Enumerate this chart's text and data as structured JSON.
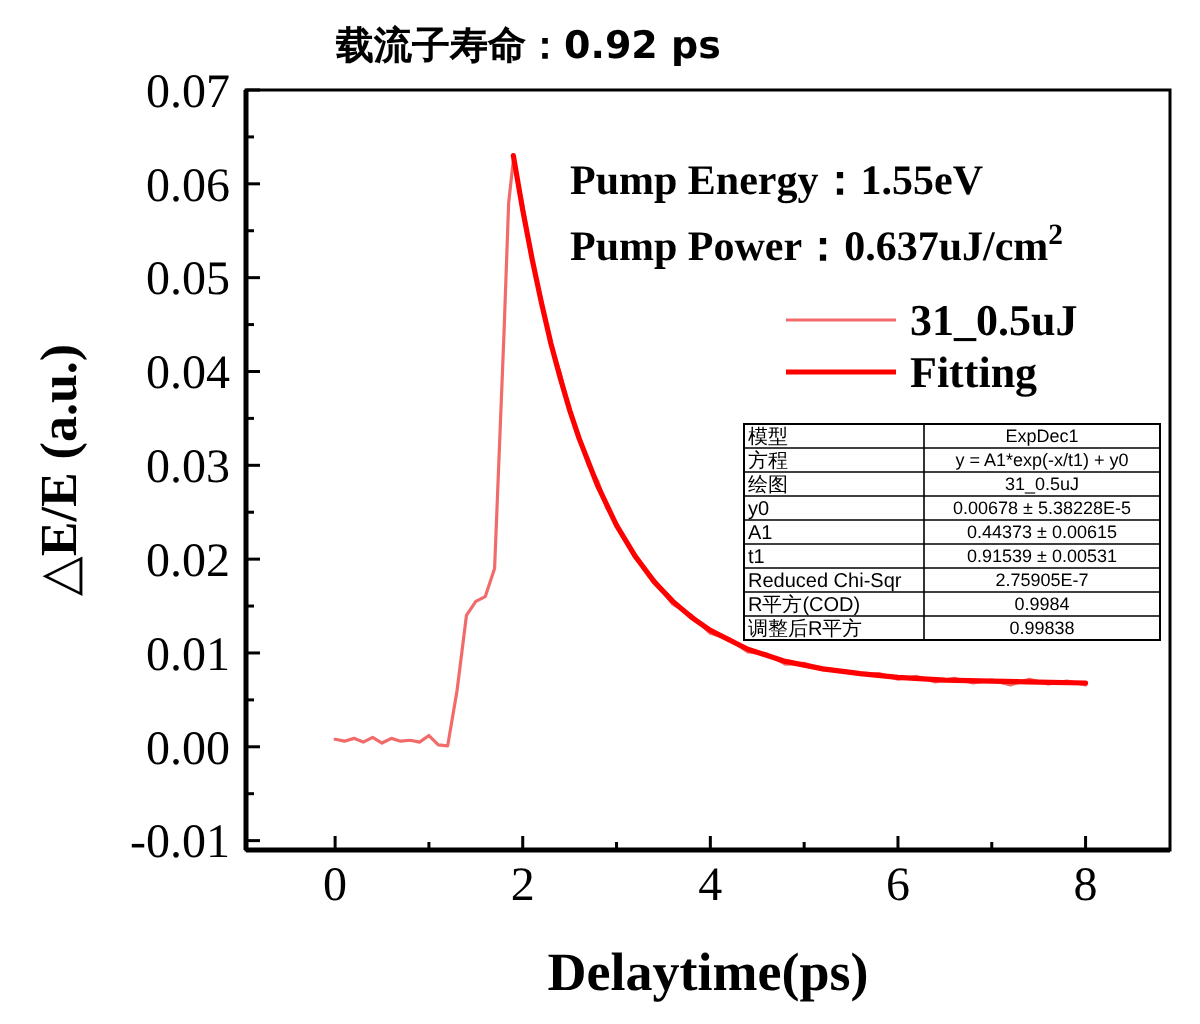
{
  "chart_data": {
    "type": "line",
    "title": "载流子寿命：0.92 ps",
    "xlabel": "Delaytime(ps)",
    "ylabel": "△E/E (a.u.)",
    "xlim": [
      -0.95,
      8.9
    ],
    "ylim": [
      -0.011,
      0.07
    ],
    "xticks": [
      0,
      {
        "value": 1,
        "label": null
      },
      2,
      {
        "value": 3,
        "label": null
      },
      4,
      {
        "value": 5,
        "label": null
      },
      6,
      {
        "value": 7,
        "label": null
      },
      8
    ],
    "yticks": [
      {
        "value": -0.01,
        "label": "-0.01"
      },
      {
        "value": -0.005,
        "label": null
      },
      {
        "value": 0,
        "label": "0.00"
      },
      {
        "value": 0.005,
        "label": null
      },
      {
        "value": 0.01,
        "label": "0.01"
      },
      {
        "value": 0.015,
        "label": null
      },
      {
        "value": 0.02,
        "label": "0.02"
      },
      {
        "value": 0.025,
        "label": null
      },
      {
        "value": 0.03,
        "label": "0.03"
      },
      {
        "value": 0.035,
        "label": null
      },
      {
        "value": 0.04,
        "label": "0.04"
      },
      {
        "value": 0.045,
        "label": null
      },
      {
        "value": 0.05,
        "label": "0.05"
      },
      {
        "value": 0.055,
        "label": null
      },
      {
        "value": 0.06,
        "label": "0.06"
      },
      {
        "value": 0.065,
        "label": null
      },
      {
        "value": 0.07,
        "label": "0.07"
      }
    ],
    "grid": false,
    "legend": "top right",
    "marker": "none",
    "line_style": "solid",
    "series": [
      {
        "name": "31_0.5uJ",
        "color": "#f26b6b",
        "x": [
          0,
          0.1,
          0.2,
          0.3,
          0.4,
          0.5,
          0.6,
          0.7,
          0.8,
          0.9,
          1.0,
          1.1,
          1.2,
          1.3,
          1.4,
          1.5,
          1.6,
          1.7,
          1.8,
          1.85,
          1.9,
          2.0,
          2.1,
          2.2,
          2.3,
          2.4,
          2.5,
          2.6,
          2.7,
          2.8,
          2.9,
          3.0,
          3.2,
          3.4,
          3.6,
          3.8,
          4.0,
          4.2,
          4.4,
          4.6,
          4.8,
          5.0,
          5.2,
          5.4,
          5.6,
          5.8,
          6.0,
          6.2,
          6.4,
          6.6,
          6.8,
          7.0,
          7.2,
          7.4,
          7.6,
          7.8,
          8.0
        ],
        "values": [
          0.0008,
          0.0006,
          0.0009,
          0.0005,
          0.001,
          0.0004,
          0.0009,
          0.0006,
          0.0007,
          0.0005,
          0.0012,
          0.0002,
          0.0001,
          0.006,
          0.014,
          0.0155,
          0.016,
          0.019,
          0.044,
          0.058,
          0.0625,
          0.0578,
          0.0518,
          0.0476,
          0.0428,
          0.0398,
          0.0357,
          0.0331,
          0.03,
          0.0283,
          0.0254,
          0.0238,
          0.0201,
          0.0178,
          0.0152,
          0.014,
          0.0121,
          0.0115,
          0.0101,
          0.0099,
          0.0088,
          0.0089,
          0.0082,
          0.0081,
          0.0077,
          0.0078,
          0.0072,
          0.0075,
          0.0069,
          0.0073,
          0.0068,
          0.0071,
          0.0066,
          0.0072,
          0.0067,
          0.007,
          0.0066
        ]
      },
      {
        "name": "Fitting",
        "color": "#ff0000",
        "x": [
          1.9,
          2.0,
          2.1,
          2.2,
          2.3,
          2.4,
          2.5,
          2.6,
          2.8,
          3.0,
          3.2,
          3.4,
          3.6,
          3.8,
          4.0,
          4.4,
          4.8,
          5.2,
          5.6,
          6.0,
          6.5,
          7.0,
          7.5,
          8.0
        ],
        "values": [
          0.063,
          0.0572,
          0.052,
          0.0473,
          0.043,
          0.0393,
          0.0359,
          0.0329,
          0.0278,
          0.0236,
          0.0203,
          0.0176,
          0.0155,
          0.0138,
          0.0124,
          0.0104,
          0.0091,
          0.0083,
          0.0078,
          0.0074,
          0.0071,
          0.007,
          0.0069,
          0.0068
        ]
      }
    ],
    "annotations": [
      "Pump Energy：1.55eV",
      "Pump Power：0.637uJ/cm$^{2}$",
      "模型",
      "ExpDec1",
      "方程",
      "y = A1*exp(-x/t1) + y0",
      "绘图",
      "31_0.5uJ",
      "y0",
      "0.00678 ± 5.38228E-5",
      "A1",
      "0.44373 ± 0.00615",
      "t1",
      "0.91539 ± 0.00531",
      "Reduced Chi-Sqr",
      "2.75905E-7",
      "R平方(COD)",
      "0.9984",
      "调整后R平方",
      "0.99838"
    ]
  }
}
